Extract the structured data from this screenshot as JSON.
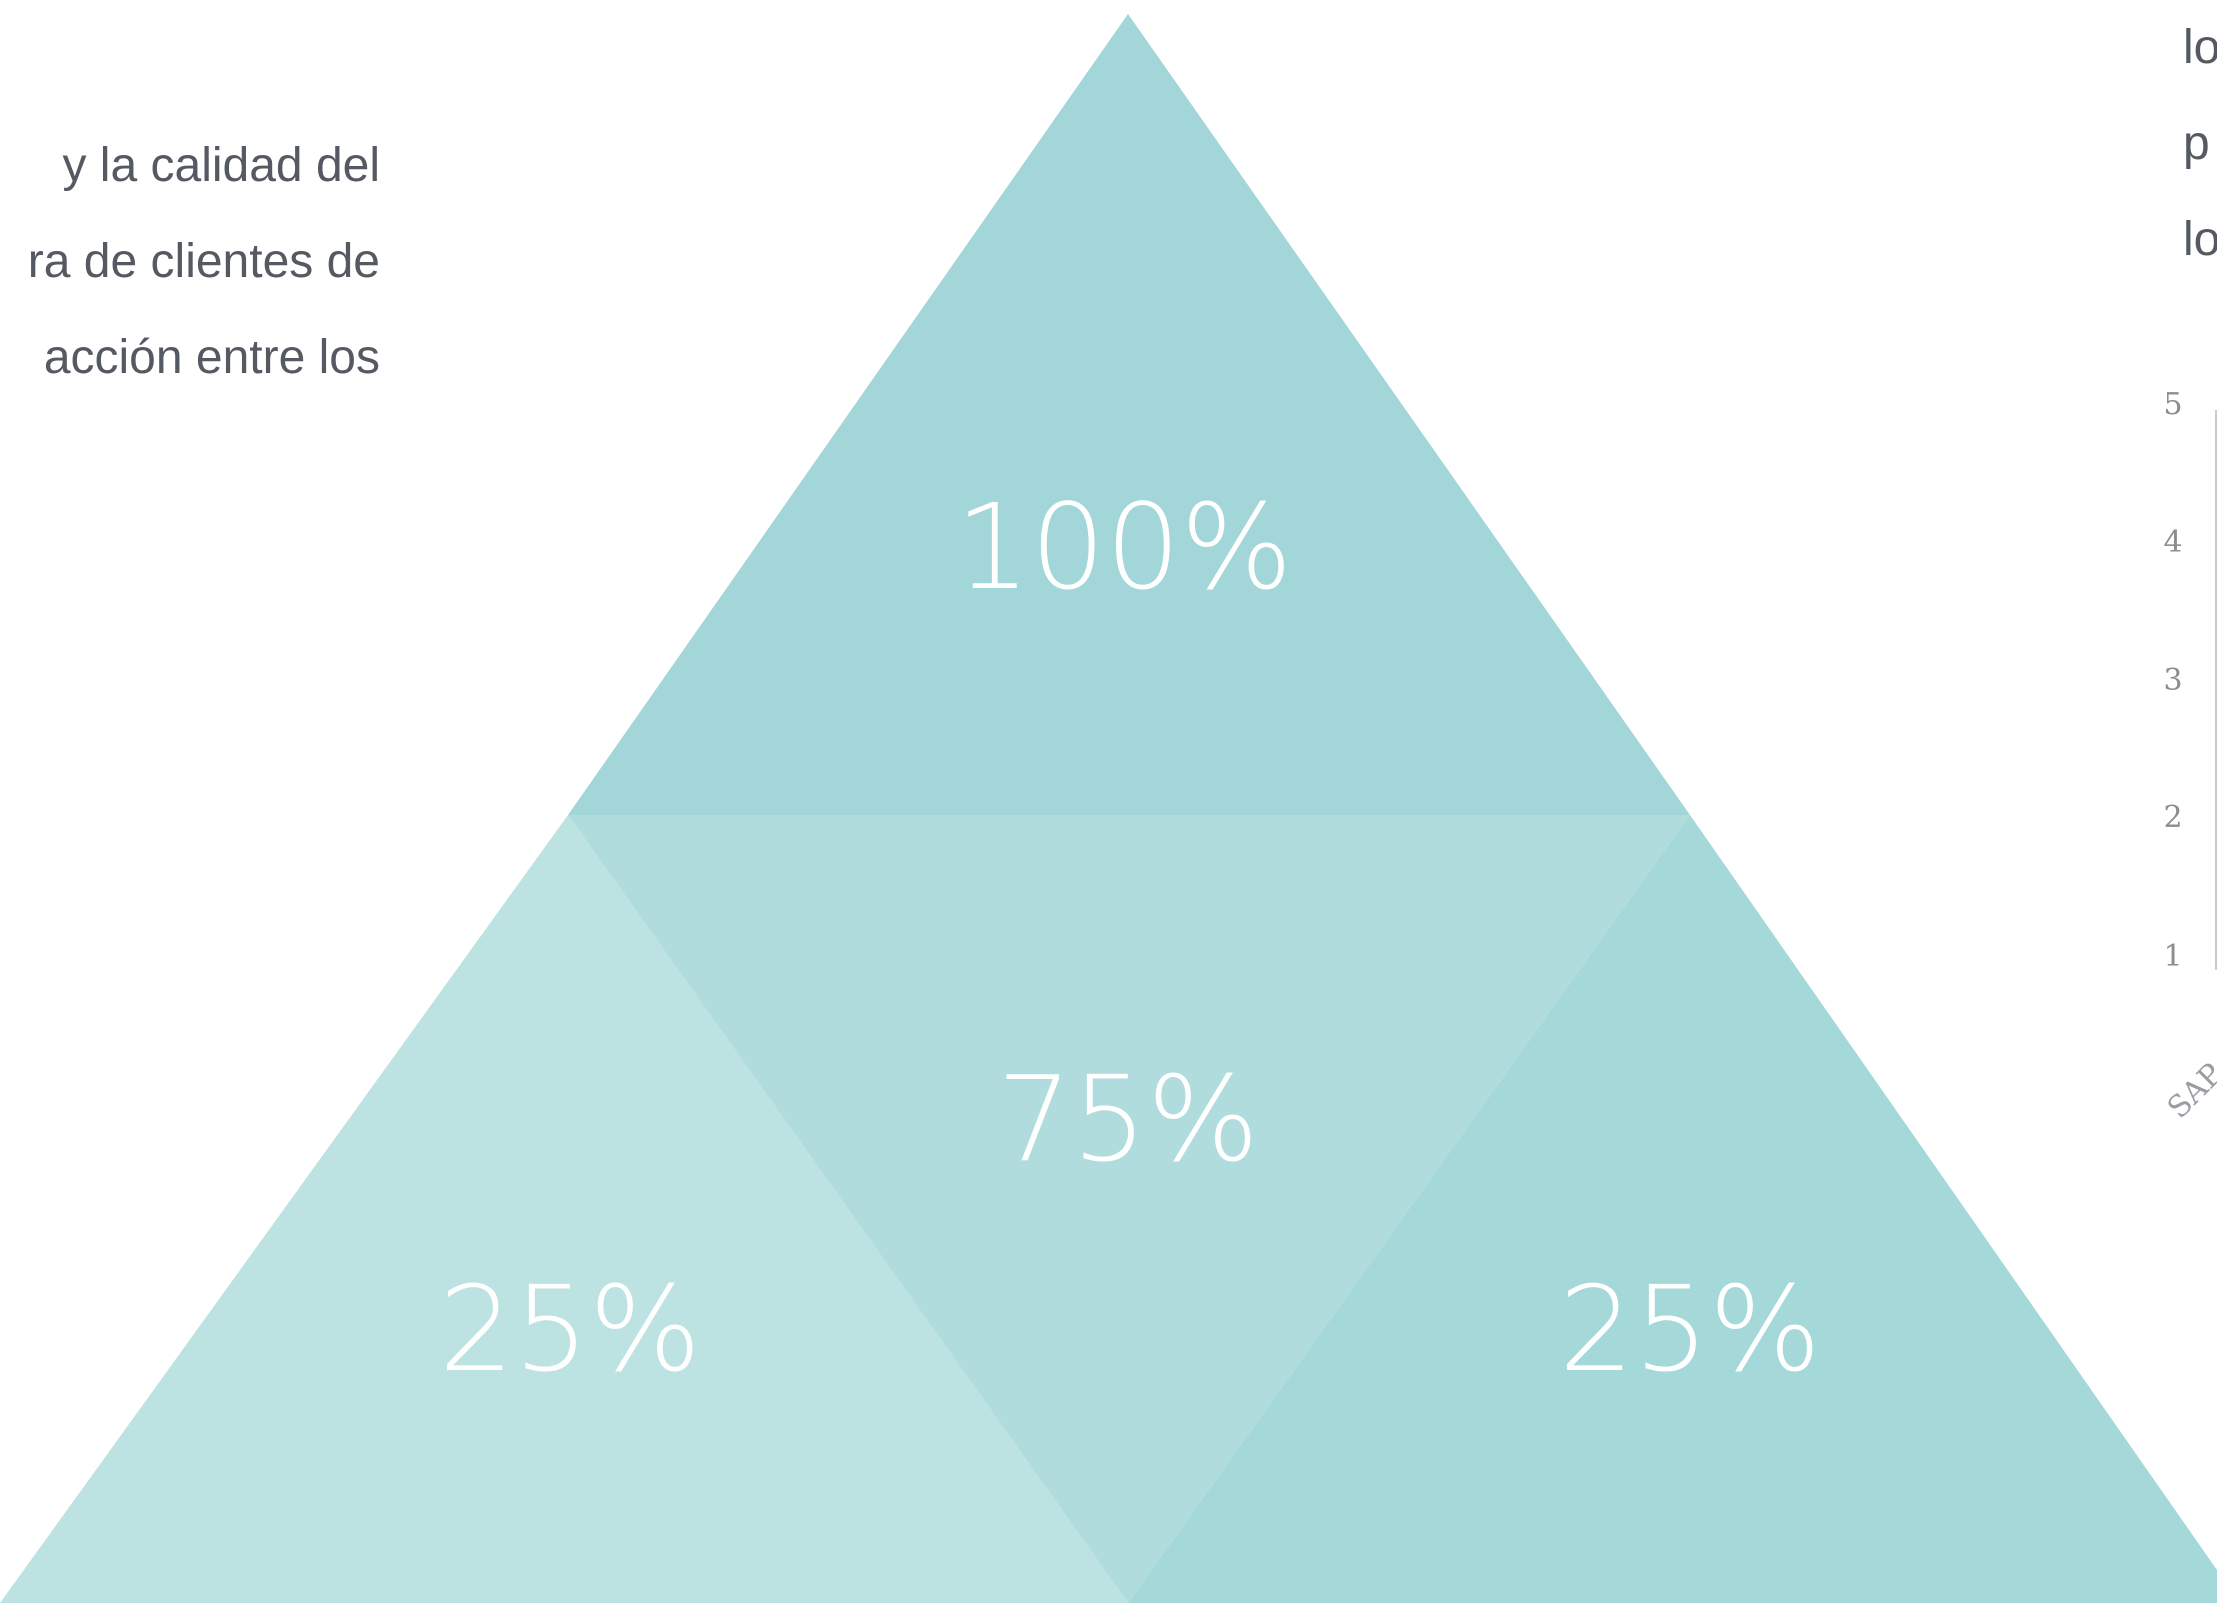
{
  "left_text": {
    "lines": [
      "y la calidad del",
      "ra de clientes de",
      "acción entre los"
    ]
  },
  "right_text": {
    "lines": [
      "lo",
      "p",
      "lo"
    ]
  },
  "pyramid": {
    "segments": [
      {
        "id": "top",
        "label": "100%",
        "color": "#a2d6d8"
      },
      {
        "id": "center",
        "label": "75%",
        "color": "#b1dcdd"
      },
      {
        "id": "bottom-left",
        "label": "25%",
        "color": "#bde2e2"
      },
      {
        "id": "bottom-right",
        "label": "25%",
        "color": "#a5d8d8"
      }
    ]
  },
  "mini_chart": {
    "y_ticks": [
      "5",
      "4",
      "3",
      "2",
      "1"
    ],
    "category": "SAP"
  }
}
